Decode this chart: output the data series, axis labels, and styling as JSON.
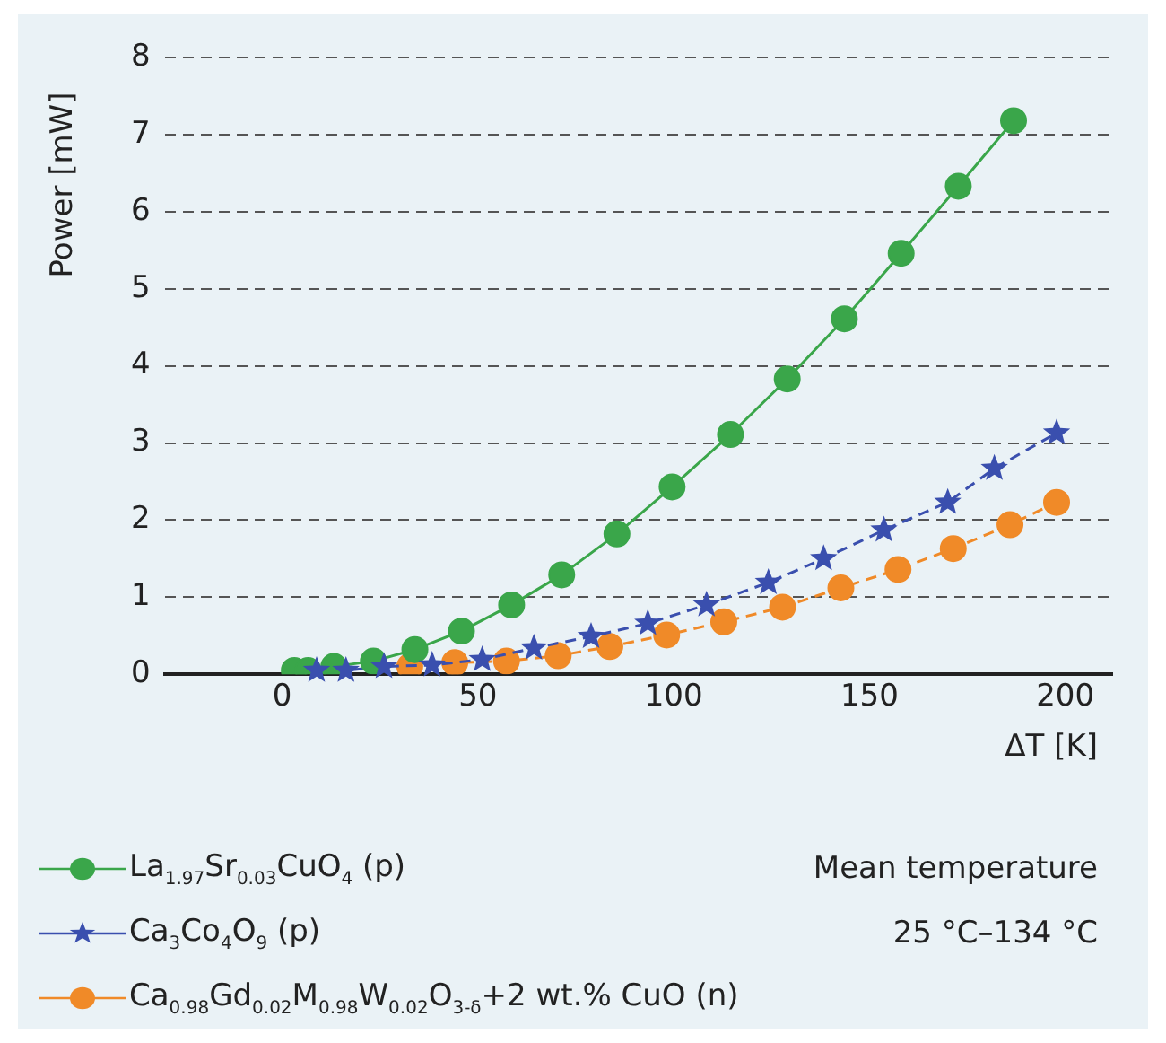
{
  "chart_data": {
    "type": "line",
    "xlabel": "ΔT [K]",
    "ylabel": "Power [mW]",
    "xlim": [
      -30,
      212
    ],
    "xticks": [
      0,
      50,
      100,
      150,
      200
    ],
    "ylim": [
      0,
      8
    ],
    "yticks": [
      0,
      1,
      2,
      3,
      4,
      5,
      6,
      7,
      8
    ],
    "grid": "y",
    "legend": "bottom",
    "annotations": [
      "Mean temperature",
      "25 °C–134 °C"
    ],
    "series": [
      {
        "name": "La$_{1.97}$Sr$_{0.03}$CuO$_{4}$ (p)",
        "color": "#3aa64a",
        "marker": "circle",
        "line_style": "solid",
        "x": [
          3.1,
          6.6,
          13.2,
          23.3,
          33.9,
          45.8,
          58.6,
          71.4,
          85.5,
          99.6,
          114.5,
          129,
          143.6,
          158.1,
          172.7,
          186.8
        ],
        "values": [
          0.05,
          0.05,
          0.1,
          0.17,
          0.32,
          0.56,
          0.9,
          1.29,
          1.82,
          2.43,
          3.11,
          3.83,
          4.61,
          5.46,
          6.33,
          7.18
        ]
      },
      {
        "name": "Ca$_{3}$Co$_{4}$O$_{9}$ (p)",
        "color": "#3a4fae",
        "marker": "star",
        "line_style": "dashed",
        "x": [
          8.8,
          16.3,
          26,
          38.3,
          51.1,
          64.3,
          78.9,
          93.4,
          108.4,
          124.2,
          138.3,
          153.7,
          170,
          181.9,
          197.8
        ],
        "values": [
          0.05,
          0.05,
          0.1,
          0.12,
          0.19,
          0.34,
          0.49,
          0.66,
          0.9,
          1.19,
          1.5,
          1.87,
          2.23,
          2.67,
          3.13
        ]
      },
      {
        "name": "Ca$_{0.98}$Gd$_{0.02}$M$_{0.98}$W$_{0.02}$O$_{3-δ}$+2 wt.% CuO (n)",
        "color": "#f08a28",
        "marker": "circle",
        "line_style": "dashed",
        "x": [
          32.6,
          44.1,
          57.3,
          70.5,
          83.7,
          98.2,
          112.8,
          127.8,
          142.7,
          157.3,
          171.4,
          185.9,
          197.8
        ],
        "values": [
          0.1,
          0.15,
          0.17,
          0.24,
          0.36,
          0.51,
          0.68,
          0.87,
          1.12,
          1.36,
          1.63,
          1.94,
          2.23
        ]
      }
    ]
  }
}
